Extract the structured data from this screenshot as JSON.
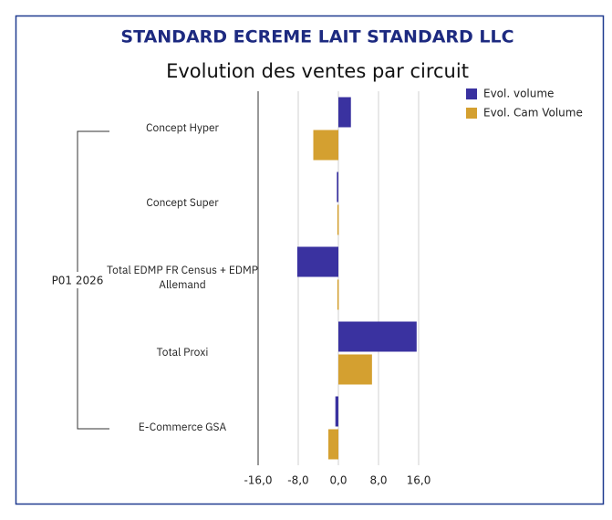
{
  "chart_data": {
    "type": "bar",
    "orientation": "horizontal",
    "title": "STANDARD ECREME LAIT STANDARD LLC",
    "subtitle": "Evolution des ventes par circuit",
    "group_label": "P01 2026",
    "categories": [
      "Concept Hyper",
      "Concept Super",
      "Total EDMP FR Census + EDMP Allemand",
      "Total Proxi",
      "E-Commerce GSA"
    ],
    "series": [
      {
        "name": "Evol. volume",
        "color": "#3a32a0",
        "values": [
          2.5,
          -0.3,
          -8.2,
          15.6,
          -0.6
        ]
      },
      {
        "name": "Evol. Cam Volume",
        "color": "#d4a030",
        "values": [
          -5.0,
          -0.2,
          -0.2,
          6.7,
          -2.0
        ]
      }
    ],
    "xlim": [
      -16,
      16
    ],
    "xticks": [
      {
        "value": -16,
        "label": "-16,0"
      },
      {
        "value": -8,
        "label": "-8,0"
      },
      {
        "value": 0,
        "label": "0,0"
      },
      {
        "value": 8,
        "label": "8,0"
      },
      {
        "value": 16,
        "label": "16,0"
      }
    ],
    "grid": true,
    "legend": "upper right"
  }
}
